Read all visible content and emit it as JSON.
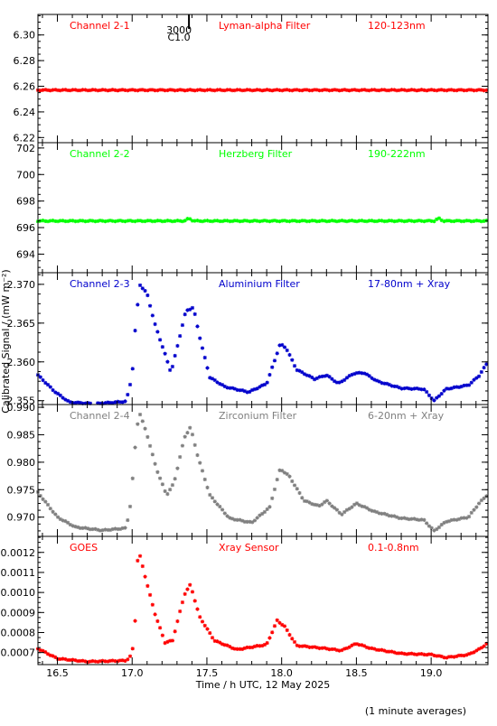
{
  "chart_data": {
    "type": "scatter",
    "xlabel": "Time / h UTC, 12 May 2025",
    "ylabel": "Calibrated Signal / (mW m⁻²)",
    "xlim": [
      16.37,
      19.38
    ],
    "x_ticks": [
      16.5,
      17.0,
      17.5,
      18.0,
      18.5,
      19.0
    ],
    "x_tick_labels": [
      "16.5",
      "17.0",
      "17.5",
      "18.0",
      "18.5",
      "19.0"
    ],
    "note": "(1 minute averages)",
    "marker_annotation": {
      "x": 17.38,
      "line1": "3000",
      "line2": "C1.0"
    },
    "panels": [
      {
        "name": "Channel 2-1",
        "filter": "Lyman-alpha Filter",
        "band": "120-123nm",
        "color": "#ff0000",
        "ylim": [
          6.216,
          6.316
        ],
        "y_ticks": [
          6.22,
          6.24,
          6.26,
          6.28,
          6.3
        ],
        "y_tick_labels": [
          "6.22",
          "6.24",
          "6.26",
          "6.28",
          "6.30"
        ],
        "anchors": [
          [
            16.37,
            6.257
          ],
          [
            19.38,
            6.257
          ]
        ]
      },
      {
        "name": "Channel 2-2",
        "filter": "Herzberg Filter",
        "band": "190-222nm",
        "color": "#00ff00",
        "ylim": [
          692.6,
          702.4
        ],
        "y_ticks": [
          694,
          696,
          698,
          700,
          702
        ],
        "y_tick_labels": [
          "694",
          "696",
          "698",
          "700",
          "702"
        ],
        "anchors": [
          [
            16.37,
            696.5
          ],
          [
            17.35,
            696.5
          ],
          [
            17.38,
            696.7
          ],
          [
            17.41,
            696.5
          ],
          [
            19.02,
            696.5
          ],
          [
            19.05,
            696.7
          ],
          [
            19.08,
            696.5
          ],
          [
            19.38,
            696.5
          ]
        ]
      },
      {
        "name": "Channel 2-3",
        "filter": "Aluminium Filter",
        "band": "17-80nm + Xray",
        "color": "#0000cc",
        "ylim": [
          2.3545,
          2.3715
        ],
        "y_ticks": [
          2.355,
          2.36,
          2.365,
          2.37
        ],
        "y_tick_labels": [
          "2.355",
          "2.360",
          "2.365",
          "2.370"
        ],
        "anchors": [
          [
            16.37,
            2.3583
          ],
          [
            16.48,
            2.3562
          ],
          [
            16.58,
            2.3548
          ],
          [
            16.75,
            2.3546
          ],
          [
            16.96,
            2.3549
          ],
          [
            17.0,
            2.3582
          ],
          [
            17.02,
            2.364
          ],
          [
            17.05,
            2.37
          ],
          [
            17.1,
            2.3688
          ],
          [
            17.15,
            2.365
          ],
          [
            17.22,
            2.361
          ],
          [
            17.26,
            2.3586
          ],
          [
            17.3,
            2.3618
          ],
          [
            17.36,
            2.3666
          ],
          [
            17.41,
            2.367
          ],
          [
            17.46,
            2.3625
          ],
          [
            17.52,
            2.358
          ],
          [
            17.62,
            2.3568
          ],
          [
            17.78,
            2.3561
          ],
          [
            17.9,
            2.3572
          ],
          [
            17.95,
            2.36
          ],
          [
            17.99,
            2.3623
          ],
          [
            18.03,
            2.3618
          ],
          [
            18.1,
            2.359
          ],
          [
            18.22,
            2.3578
          ],
          [
            18.3,
            2.3583
          ],
          [
            18.38,
            2.3572
          ],
          [
            18.48,
            2.3585
          ],
          [
            18.55,
            2.3586
          ],
          [
            18.64,
            2.3575
          ],
          [
            18.8,
            2.3566
          ],
          [
            18.95,
            2.3565
          ],
          [
            19.02,
            2.355
          ],
          [
            19.1,
            2.3565
          ],
          [
            19.25,
            2.357
          ],
          [
            19.32,
            2.3582
          ],
          [
            19.38,
            2.36
          ]
        ]
      },
      {
        "name": "Channel 2-4",
        "filter": "Zirconium Filter",
        "band": "6-20nm + Xray",
        "color": "#808080",
        "ylim": [
          0.9665,
          0.9905
        ],
        "y_ticks": [
          0.97,
          0.975,
          0.98,
          0.985,
          0.99
        ],
        "y_tick_labels": [
          "0.970",
          "0.975",
          "0.980",
          "0.985",
          "0.990"
        ],
        "anchors": [
          [
            16.37,
            0.9745
          ],
          [
            16.5,
            0.97
          ],
          [
            16.62,
            0.9682
          ],
          [
            16.8,
            0.9676
          ],
          [
            16.96,
            0.968
          ],
          [
            16.99,
            0.9725
          ],
          [
            17.03,
            0.986
          ],
          [
            17.05,
            0.989
          ],
          [
            17.1,
            0.985
          ],
          [
            17.16,
            0.979
          ],
          [
            17.23,
            0.974
          ],
          [
            17.28,
            0.9762
          ],
          [
            17.35,
            0.9845
          ],
          [
            17.39,
            0.9864
          ],
          [
            17.44,
            0.981
          ],
          [
            17.52,
            0.974
          ],
          [
            17.65,
            0.9698
          ],
          [
            17.8,
            0.969
          ],
          [
            17.92,
            0.9718
          ],
          [
            17.99,
            0.9788
          ],
          [
            18.05,
            0.9775
          ],
          [
            18.15,
            0.973
          ],
          [
            18.25,
            0.972
          ],
          [
            18.3,
            0.973
          ],
          [
            18.4,
            0.9705
          ],
          [
            18.5,
            0.9725
          ],
          [
            18.62,
            0.971
          ],
          [
            18.8,
            0.9698
          ],
          [
            18.95,
            0.9695
          ],
          [
            19.02,
            0.9675
          ],
          [
            19.1,
            0.9692
          ],
          [
            19.25,
            0.97
          ],
          [
            19.32,
            0.9725
          ],
          [
            19.38,
            0.9742
          ]
        ]
      },
      {
        "name": "GOES",
        "filter": "Xray Sensor",
        "band": "0.1-0.8nm",
        "color": "#ff0000",
        "ylim": [
          0.00064,
          0.00128
        ],
        "y_ticks": [
          0.0007,
          0.0008,
          0.0009,
          0.001,
          0.0011,
          0.0012
        ],
        "y_tick_labels": [
          "0.0007",
          "0.0008",
          "0.0009",
          "0.0010",
          "0.0011",
          "0.0012"
        ],
        "anchors": [
          [
            16.37,
            0.00072
          ],
          [
            16.5,
            0.00067
          ],
          [
            16.7,
            0.000655
          ],
          [
            16.96,
            0.00066
          ],
          [
            17.0,
            0.00069
          ],
          [
            17.02,
            0.00086
          ],
          [
            17.04,
            0.00122
          ],
          [
            17.08,
            0.0011
          ],
          [
            17.15,
            0.0009
          ],
          [
            17.22,
            0.00075
          ],
          [
            17.27,
            0.00076
          ],
          [
            17.35,
            0.00099
          ],
          [
            17.39,
            0.00104
          ],
          [
            17.45,
            0.00088
          ],
          [
            17.55,
            0.00076
          ],
          [
            17.7,
            0.000715
          ],
          [
            17.9,
            0.00074
          ],
          [
            17.97,
            0.00086
          ],
          [
            18.02,
            0.00083
          ],
          [
            18.1,
            0.000735
          ],
          [
            18.3,
            0.00072
          ],
          [
            18.4,
            0.00071
          ],
          [
            18.5,
            0.000745
          ],
          [
            18.6,
            0.00072
          ],
          [
            18.8,
            0.000695
          ],
          [
            19.0,
            0.00069
          ],
          [
            19.1,
            0.000675
          ],
          [
            19.25,
            0.00069
          ],
          [
            19.33,
            0.00072
          ],
          [
            19.38,
            0.00075
          ]
        ]
      }
    ]
  }
}
